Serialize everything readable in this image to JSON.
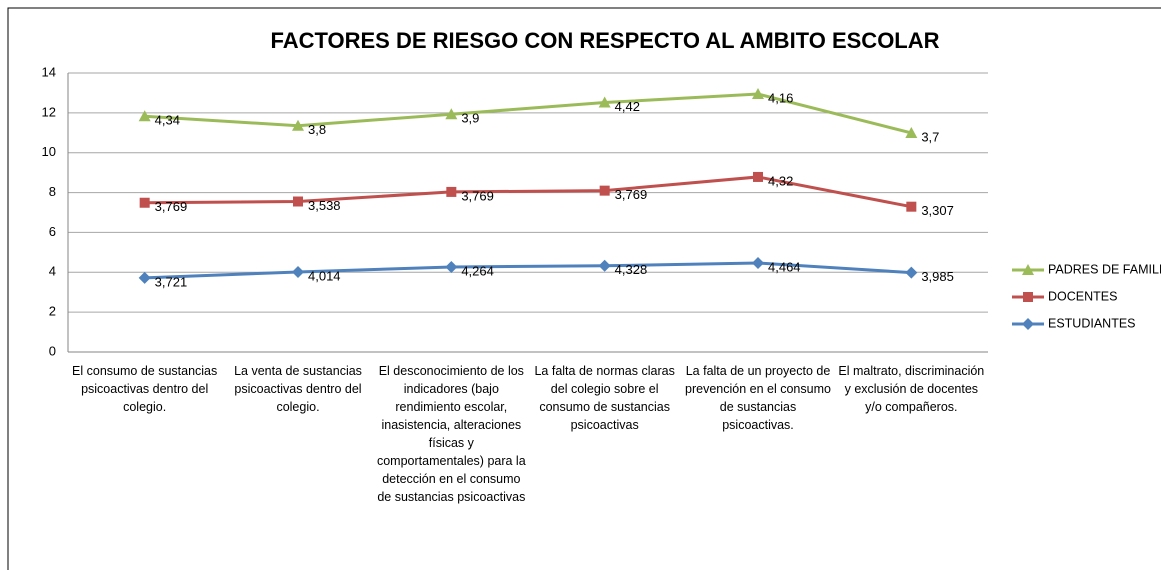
{
  "chart_data": {
    "type": "line",
    "stacked": true,
    "title": "FACTORES DE RIESGO CON RESPECTO AL AMBITO ESCOLAR",
    "categories": [
      "El consumo de sustancias psicoactivas dentro del colegio.",
      "La venta de sustancias psicoactivas dentro del colegio.",
      "El desconocimiento de los indicadores (bajo rendimiento escolar, inasistencia, alteraciones físicas y comportamentales) para la detección en el consumo de sustancias psicoactivas",
      "La falta de normas claras del colegio sobre el consumo de sustancias psicoactivas",
      "La falta de un proyecto de prevención en el consumo de sustancias psicoactivas.",
      "El maltrato, discriminación y exclusión de docentes y/o compañeros."
    ],
    "series": [
      {
        "name": "ESTUDIANTES",
        "color": "#4f81bd",
        "marker": "diamond",
        "values": [
          3.721,
          4.014,
          4.264,
          4.328,
          4.464,
          3.985
        ],
        "value_labels": [
          "3,721",
          "4,014",
          "4,264",
          "4,328",
          "4,464",
          "3,985"
        ]
      },
      {
        "name": "DOCENTES",
        "color": "#c0504d",
        "marker": "square",
        "values": [
          3.769,
          3.538,
          3.769,
          3.769,
          4.32,
          3.307
        ],
        "value_labels": [
          "3,769",
          "3,538",
          "3,769",
          "3,769",
          "4,32",
          "3,307"
        ]
      },
      {
        "name": "PADRES DE FAMILIA",
        "color": "#9bbb59",
        "marker": "triangle",
        "values": [
          4.34,
          3.8,
          3.9,
          4.42,
          4.16,
          3.7
        ],
        "value_labels": [
          "4,34",
          "3,8",
          "3,9",
          "4,42",
          "4,16",
          "3,7"
        ]
      }
    ],
    "ylim": [
      0,
      14
    ],
    "yticks": [
      0,
      2,
      4,
      6,
      8,
      10,
      12,
      14
    ],
    "grid": true,
    "legend": "right"
  }
}
